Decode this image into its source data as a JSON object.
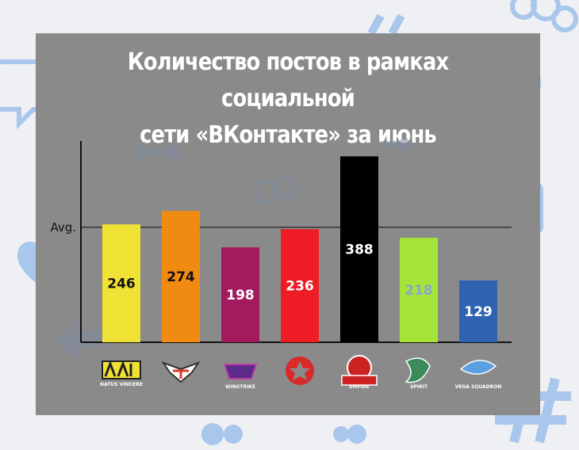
{
  "title_line1": "Количество постов в рамках социальной",
  "title_line2": "сети «ВКонтакте» за июнь",
  "chart_data": {
    "type": "bar",
    "title": "Количество постов в рамках социальной сети «ВКонтакте» за июнь",
    "categories": [
      "NAVI",
      "Virtus.pro",
      "Winstrike",
      "Gambit",
      "Team Empire",
      "Team Spirit",
      "Vega Squadron"
    ],
    "values": [
      246,
      274,
      198,
      236,
      388,
      218,
      129
    ],
    "colors": [
      "#f0e135",
      "#f08a10",
      "#a31a5e",
      "#ee1c24",
      "#000000",
      "#a6e43a",
      "#2f63b1"
    ],
    "label_colors": [
      "#111111",
      "#111111",
      "#ffffff",
      "#ffffff",
      "#ffffff",
      "#8aa8c8",
      "#ffffff"
    ],
    "reference_line": {
      "label": "Avg.",
      "value": 240
    },
    "ylim": [
      0,
      420
    ],
    "grid": false,
    "logo_texts": [
      "NATUS VINCERE",
      "",
      "WINSTRIKE",
      "",
      "EMPIRE",
      "SPIRIT",
      "VEGA SQUADRON"
    ]
  }
}
